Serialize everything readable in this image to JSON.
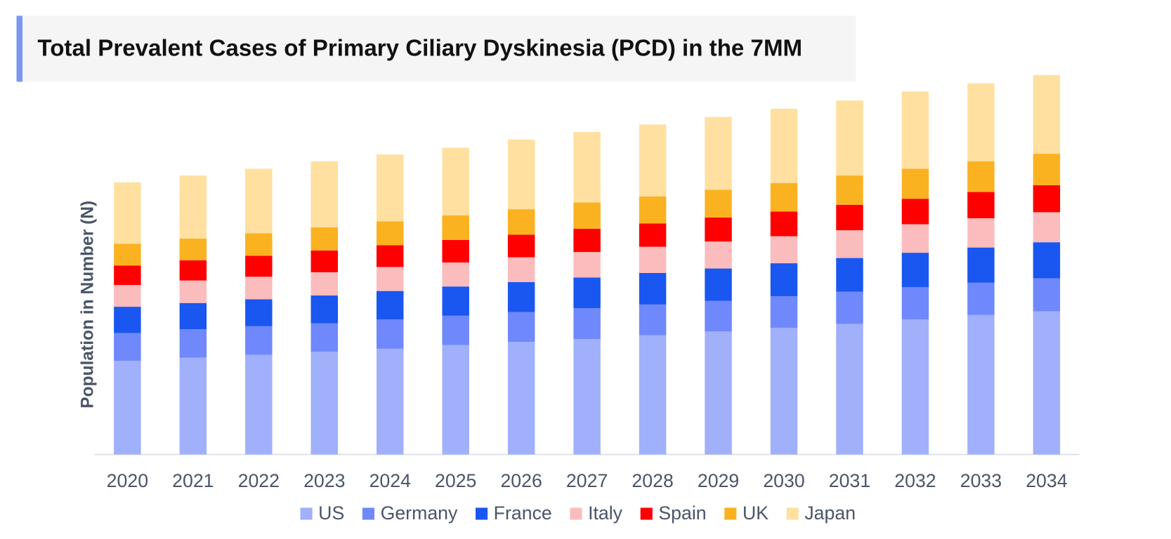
{
  "chart_data": {
    "type": "stacked_bar",
    "title": "Total Prevalent Cases of Primary Ciliary Dyskinesia (PCD) in the 7MM",
    "y_label": "Population in Number (N)",
    "categories": [
      "2020",
      "2021",
      "2022",
      "2023",
      "2024",
      "2025",
      "2026",
      "2027",
      "2028",
      "2029",
      "2030",
      "2031",
      "2032",
      "2033",
      "2034"
    ],
    "series": [
      {
        "name": "US",
        "color": "#a0b0fb",
        "values": [
          125,
          129,
          133,
          137,
          141,
          146,
          150,
          154,
          159,
          164,
          169,
          174,
          180,
          186,
          191
        ]
      },
      {
        "name": "Germany",
        "color": "#6f88fb",
        "values": [
          37,
          38,
          38,
          38,
          39,
          39,
          40,
          41,
          41,
          41,
          42,
          43,
          43,
          43,
          44
        ]
      },
      {
        "name": "France",
        "color": "#1a56f0",
        "values": [
          35,
          35,
          36,
          37,
          38,
          39,
          40,
          41,
          42,
          43,
          44,
          45,
          46,
          47,
          48
        ]
      },
      {
        "name": "Italy",
        "color": "#fbbcbd",
        "values": [
          29,
          30,
          30,
          31,
          32,
          32,
          33,
          34,
          35,
          36,
          36,
          37,
          38,
          39,
          40
        ]
      },
      {
        "name": "Spain",
        "color": "#ff0000",
        "values": [
          26,
          27,
          28,
          29,
          29,
          30,
          30,
          31,
          31,
          32,
          33,
          34,
          34,
          35,
          36
        ]
      },
      {
        "name": "UK",
        "color": "#fbb220",
        "values": [
          29,
          29,
          30,
          31,
          32,
          33,
          34,
          35,
          36,
          37,
          38,
          39,
          40,
          41,
          42
        ]
      },
      {
        "name": "Japan",
        "color": "#ffe0a0",
        "values": [
          82,
          84,
          86,
          88,
          89,
          90,
          93,
          94,
          96,
          97,
          99,
          100,
          103,
          104,
          105
        ]
      }
    ],
    "ylim": [
      0,
      506
    ]
  }
}
